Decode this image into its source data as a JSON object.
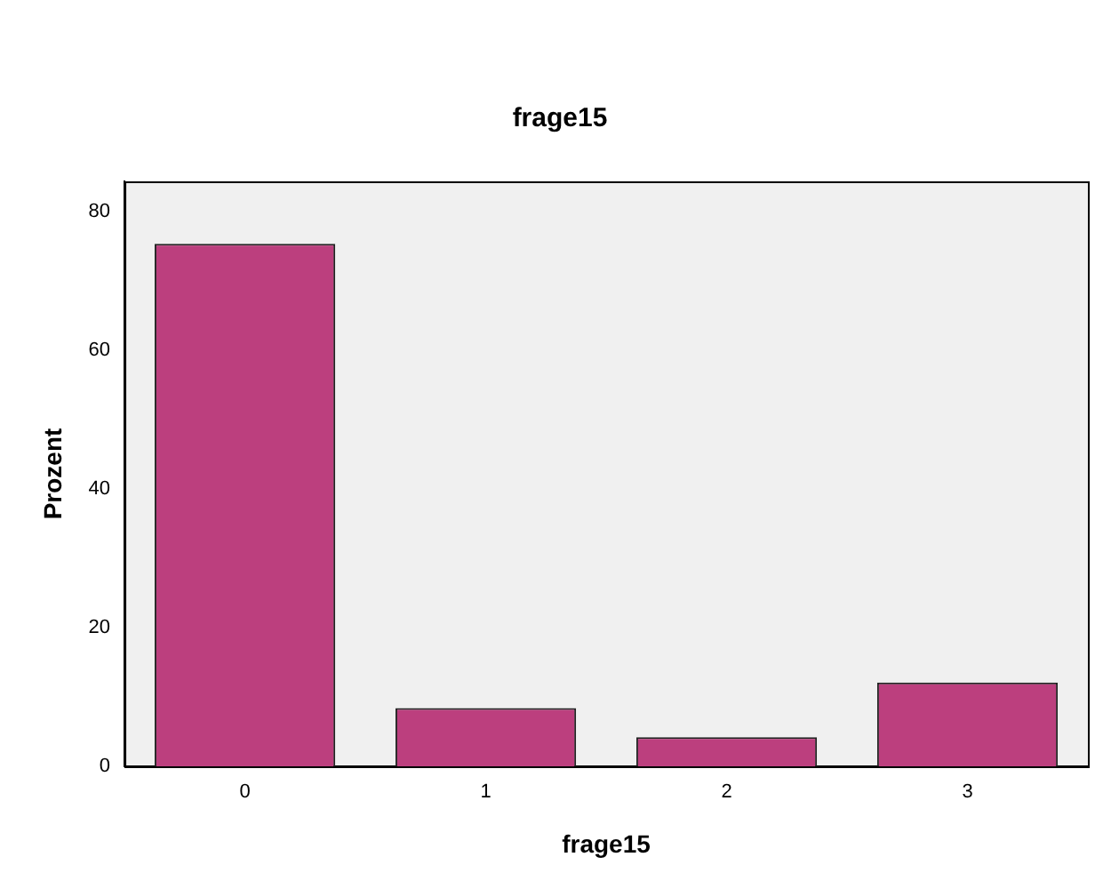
{
  "chart_data": {
    "type": "bar",
    "title": "frage15",
    "xlabel": "frage15",
    "ylabel": "Prozent",
    "categories": [
      "0",
      "1",
      "2",
      "3"
    ],
    "values": [
      75.4,
      8.4,
      4.2,
      12.1
    ],
    "color": "#bc3f7e",
    "ylim": [
      0,
      84.4
    ],
    "yticks": [
      0,
      20,
      40,
      60,
      80
    ],
    "grid": false,
    "legend": false
  }
}
